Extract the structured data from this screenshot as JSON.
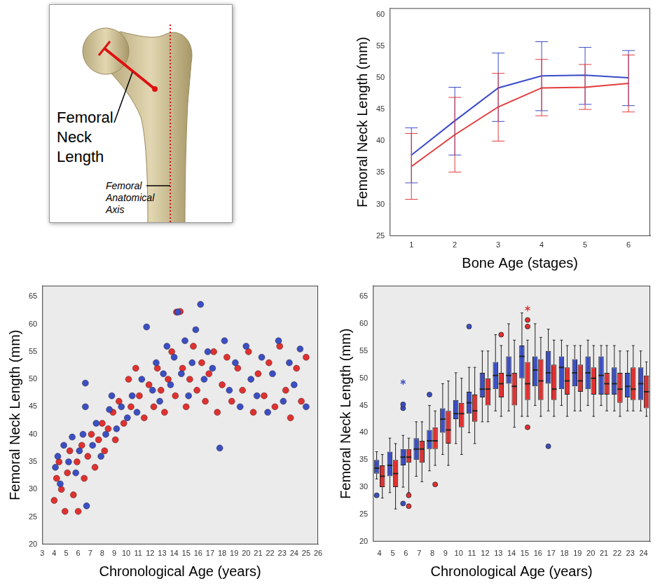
{
  "diagram": {
    "neck_label": "Femoral Neck Length",
    "axis_label": "Femoral Anatomical Axis"
  },
  "chart_data": [
    {
      "type": "line",
      "x_label": "Bone Age (stages)",
      "y_label": "Femoral Neck Length (mm)",
      "x": [
        1,
        2,
        3,
        4,
        5,
        6
      ],
      "xlim": [
        0.5,
        6.5
      ],
      "xticks": [
        1,
        2,
        3,
        4,
        5,
        6
      ],
      "ylim": [
        25,
        61
      ],
      "yticks": [
        25,
        30,
        35,
        40,
        45,
        50,
        55,
        60
      ],
      "grid": false,
      "series": [
        {
          "color": "#3a4cc9",
          "values": [
            37.8,
            43.2,
            48.4,
            50.3,
            50.4,
            50.0
          ],
          "error_low": [
            33.4,
            37.8,
            43.1,
            44.8,
            45.8,
            45.6
          ],
          "error_high": [
            42.1,
            48.5,
            53.9,
            55.7,
            54.8,
            54.3
          ]
        },
        {
          "color": "#e33b3b",
          "values": [
            36.0,
            41.0,
            45.4,
            48.4,
            48.5,
            49.1
          ],
          "error_low": [
            30.8,
            35.1,
            40.0,
            44.0,
            45.0,
            44.6
          ],
          "error_high": [
            41.2,
            46.9,
            50.7,
            52.9,
            52.1,
            53.6
          ]
        }
      ]
    },
    {
      "type": "scatter",
      "x_label": "Chronological Age (years)",
      "y_label": "Femoral Neck Length (mm)",
      "xlim": [
        3,
        26
      ],
      "xticks": [
        3,
        4,
        5,
        6,
        7,
        8,
        9,
        10,
        11,
        12,
        13,
        14,
        15,
        16,
        17,
        18,
        19,
        20,
        21,
        22,
        23,
        24,
        25,
        26
      ],
      "ylim": [
        20,
        67
      ],
      "yticks": [
        20,
        25,
        30,
        35,
        40,
        45,
        50,
        55,
        60,
        65
      ],
      "grid": false,
      "series": [
        {
          "color": "#3b4fc4",
          "points": [
            [
              4.1,
              34
            ],
            [
              4.3,
              36
            ],
            [
              4.5,
              31
            ],
            [
              4.8,
              38
            ],
            [
              5.2,
              35
            ],
            [
              5.5,
              39.5
            ],
            [
              5.8,
              33
            ],
            [
              6.1,
              37
            ],
            [
              6.4,
              40
            ],
            [
              6.6,
              49.3
            ],
            [
              6.6,
              45
            ],
            [
              6.7,
              27
            ],
            [
              7.2,
              38
            ],
            [
              7.5,
              42
            ],
            [
              7.9,
              36
            ],
            [
              8.3,
              40
            ],
            [
              8.6,
              44.5
            ],
            [
              8.8,
              47
            ],
            [
              9.2,
              41
            ],
            [
              9.6,
              45
            ],
            [
              10.1,
              43
            ],
            [
              10.5,
              47
            ],
            [
              10.9,
              44
            ],
            [
              11.3,
              50
            ],
            [
              11.7,
              59.5
            ],
            [
              12.2,
              48
            ],
            [
              12.5,
              53
            ],
            [
              12.8,
              46
            ],
            [
              13.1,
              51
            ],
            [
              13.4,
              56
            ],
            [
              13.7,
              49
            ],
            [
              14.0,
              54
            ],
            [
              14.3,
              62.2
            ],
            [
              14.6,
              51
            ],
            [
              14.9,
              57
            ],
            [
              15.2,
              47
            ],
            [
              15.5,
              53
            ],
            [
              15.8,
              59
            ],
            [
              16.2,
              63.6
            ],
            [
              16.5,
              50
            ],
            [
              16.8,
              55
            ],
            [
              17.2,
              52
            ],
            [
              17.8,
              37.5
            ],
            [
              18.2,
              57
            ],
            [
              18.6,
              48
            ],
            [
              19.1,
              53
            ],
            [
              19.5,
              45
            ],
            [
              20.0,
              56
            ],
            [
              20.4,
              50
            ],
            [
              20.9,
              47
            ],
            [
              21.3,
              54
            ],
            [
              21.8,
              44
            ],
            [
              22.2,
              51
            ],
            [
              22.7,
              57
            ],
            [
              23.1,
              46
            ],
            [
              23.6,
              53
            ],
            [
              24.0,
              49
            ],
            [
              24.5,
              55.5
            ],
            [
              25.0,
              45
            ]
          ]
        },
        {
          "color": "#e03131",
          "points": [
            [
              4.0,
              28
            ],
            [
              4.2,
              32
            ],
            [
              4.4,
              35
            ],
            [
              4.6,
              30
            ],
            [
              4.9,
              26
            ],
            [
              5.1,
              33
            ],
            [
              5.3,
              37
            ],
            [
              5.6,
              29
            ],
            [
              5.9,
              35
            ],
            [
              6.0,
              26
            ],
            [
              6.3,
              38
            ],
            [
              6.5,
              32
            ],
            [
              6.8,
              36
            ],
            [
              7.1,
              40
            ],
            [
              7.4,
              34
            ],
            [
              7.7,
              39
            ],
            [
              8.0,
              42
            ],
            [
              8.2,
              37
            ],
            [
              8.5,
              41
            ],
            [
              8.9,
              44
            ],
            [
              9.1,
              39
            ],
            [
              9.4,
              46
            ],
            [
              9.8,
              42
            ],
            [
              10.2,
              50
            ],
            [
              10.4,
              45
            ],
            [
              10.8,
              52
            ],
            [
              11.1,
              47
            ],
            [
              11.5,
              43
            ],
            [
              11.9,
              49
            ],
            [
              12.3,
              45
            ],
            [
              12.6,
              52
            ],
            [
              12.9,
              48
            ],
            [
              13.2,
              44
            ],
            [
              13.5,
              50
            ],
            [
              13.8,
              55
            ],
            [
              14.1,
              47
            ],
            [
              14.2,
              62.2
            ],
            [
              14.5,
              62.3
            ],
            [
              14.7,
              52
            ],
            [
              15.0,
              45
            ],
            [
              15.3,
              50
            ],
            [
              15.6,
              56
            ],
            [
              15.9,
              48
            ],
            [
              16.3,
              53
            ],
            [
              16.6,
              46
            ],
            [
              16.9,
              51
            ],
            [
              17.3,
              55
            ],
            [
              17.6,
              44
            ],
            [
              18.0,
              49
            ],
            [
              18.4,
              54
            ],
            [
              18.8,
              46
            ],
            [
              19.3,
              52
            ],
            [
              19.7,
              48
            ],
            [
              20.2,
              55
            ],
            [
              20.6,
              44
            ],
            [
              21.0,
              51
            ],
            [
              21.5,
              47
            ],
            [
              21.9,
              53
            ],
            [
              22.4,
              45
            ],
            [
              22.8,
              56
            ],
            [
              23.3,
              48
            ],
            [
              23.7,
              43
            ],
            [
              24.2,
              52
            ],
            [
              24.6,
              46
            ],
            [
              25.0,
              54
            ]
          ]
        }
      ]
    },
    {
      "type": "box",
      "x_label": "Chronological Age (years)",
      "y_label": "Femoral Neck Length (mm)",
      "categories": [
        4,
        5,
        6,
        7,
        8,
        9,
        10,
        11,
        12,
        13,
        14,
        15,
        16,
        17,
        18,
        19,
        20,
        21,
        22,
        23,
        24
      ],
      "ylim": [
        20,
        67
      ],
      "yticks": [
        20,
        25,
        30,
        35,
        40,
        45,
        50,
        55,
        60,
        65
      ],
      "grid": false,
      "series": [
        {
          "color": "#3b4fc4",
          "min": [
            31.5,
            29,
            30,
            32,
            33,
            36,
            38,
            40,
            42,
            44,
            44,
            43,
            45,
            44,
            45,
            44,
            45,
            45,
            44,
            44,
            44
          ],
          "q1": [
            32.5,
            32,
            34,
            35,
            37,
            40,
            42.5,
            43.5,
            46.5,
            48,
            49,
            50,
            48.5,
            49,
            48,
            48.5,
            48,
            47,
            47,
            46.5,
            46
          ],
          "median": [
            33.5,
            34,
            35.5,
            37,
            38.5,
            42.5,
            43.5,
            45.5,
            48,
            50.5,
            50.5,
            54,
            51.5,
            51,
            52,
            51,
            51,
            50.5,
            49,
            48.5,
            49
          ],
          "q3": [
            35,
            36.5,
            37,
            39,
            40.5,
            44.5,
            46,
            47.5,
            51,
            53,
            54,
            56,
            54,
            55,
            54,
            53.5,
            54,
            54,
            52,
            51,
            52
          ],
          "max": [
            36.5,
            39,
            39.5,
            42,
            45,
            49,
            51,
            52,
            55,
            58,
            60,
            62,
            60,
            59,
            57,
            56,
            57,
            56,
            56,
            55,
            55
          ],
          "outliers": [
            [
              4,
              28.5
            ],
            [
              6,
              44.5
            ],
            [
              6,
              45.2
            ],
            [
              6,
              27
            ],
            [
              8,
              47
            ],
            [
              11,
              59.5
            ],
            [
              17,
              37.5
            ]
          ],
          "extremes": [
            [
              6,
              49.3
            ]
          ]
        },
        {
          "color": "#e03131",
          "min": [
            28,
            26,
            29,
            31,
            34,
            34,
            36,
            38,
            42,
            43,
            41,
            43,
            43,
            43,
            43,
            44,
            43,
            44,
            43,
            44,
            43
          ],
          "q1": [
            30,
            30,
            34.5,
            34.5,
            37,
            38,
            41,
            42,
            45,
            46.5,
            45,
            46,
            46,
            46,
            47,
            47.5,
            47,
            47,
            45.5,
            46,
            44.5
          ],
          "median": [
            32,
            32.5,
            35.5,
            37,
            38.5,
            40.5,
            43.5,
            44,
            48,
            49,
            48.5,
            49,
            49.5,
            48,
            49.5,
            49.5,
            50,
            49,
            48,
            48,
            47.5
          ],
          "q3": [
            34,
            35,
            37,
            38.5,
            41,
            44,
            45.5,
            47,
            50,
            51,
            51,
            53,
            53.5,
            52.5,
            52,
            52.5,
            52,
            51,
            51,
            52,
            50.5
          ],
          "max": [
            36,
            38,
            39,
            42,
            44,
            49.5,
            50,
            52,
            55,
            56,
            57,
            57,
            57.5,
            57,
            56,
            56,
            56,
            56,
            55,
            56,
            53
          ],
          "outliers": [
            [
              6,
              28.5
            ],
            [
              6,
              26.5
            ],
            [
              8,
              30.5
            ],
            [
              13,
              58
            ],
            [
              15,
              59.5
            ],
            [
              15,
              60.7
            ],
            [
              15,
              41
            ]
          ],
          "extremes": [
            [
              15,
              62.8
            ]
          ]
        }
      ]
    }
  ]
}
